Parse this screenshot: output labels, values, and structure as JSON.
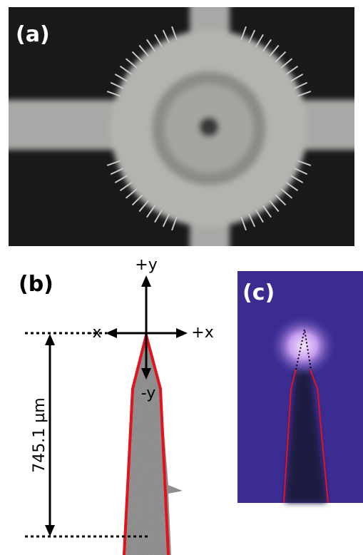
{
  "panels": {
    "a": {
      "label": "(a)"
    },
    "b": {
      "label": "(b)",
      "axis_labels": {
        "plus_y": "+y",
        "minus_y": "-y",
        "minus_x": "-x",
        "plus_x": "+x"
      },
      "dimension": "745.1 µm"
    },
    "c": {
      "label": "(c)"
    }
  }
}
